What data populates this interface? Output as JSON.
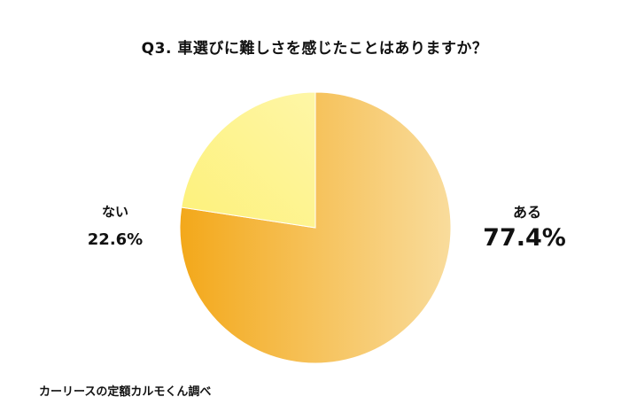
{
  "chart_data": {
    "type": "pie",
    "title": "Q3. 車選びに難しさを感じたことはありますか？",
    "slices": [
      {
        "label": "ある",
        "value": 77.4,
        "display": "77.4%",
        "color_start": "#f3a81a",
        "color_end": "#f9dc9c"
      },
      {
        "label": "ない",
        "value": 22.6,
        "display": "22.6%",
        "color_start": "#fdf17a",
        "color_end": "#fef6a6"
      }
    ],
    "start_angle_deg": 0,
    "direction": "clockwise",
    "legend": "none"
  },
  "source": "カーリースの定額カルモくん調べ"
}
